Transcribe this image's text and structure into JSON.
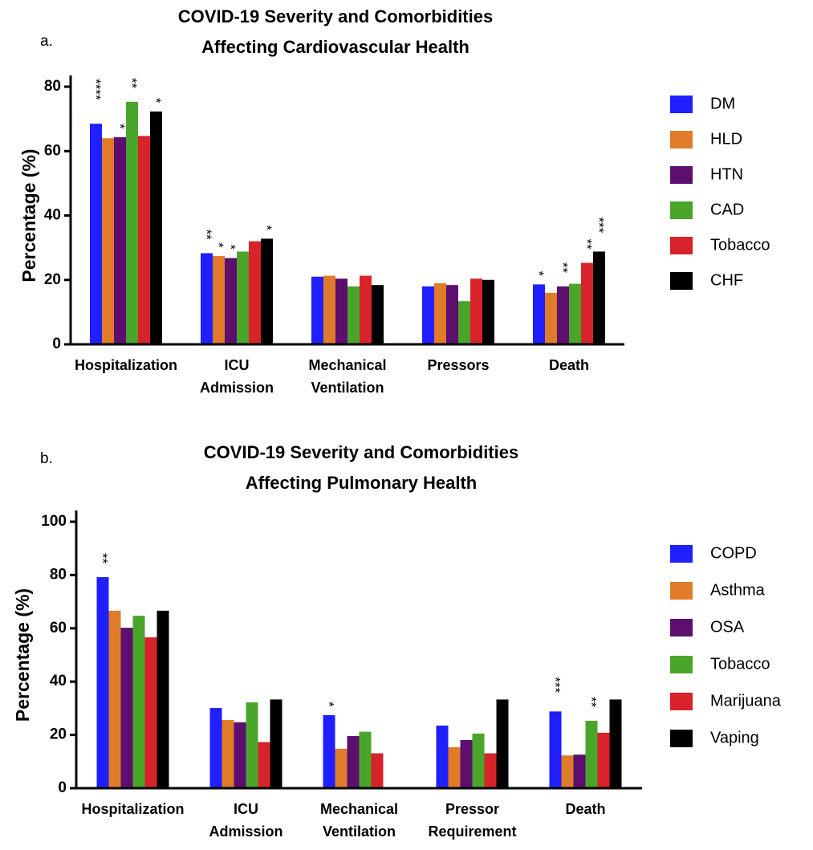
{
  "chart_data": [
    {
      "type": "bar",
      "panel_label": "a.",
      "title": [
        "COVID-19 Severity and Comorbidities",
        "Affecting Cardiovascular Health"
      ],
      "y_label": "Percentage (%)",
      "categories": [
        [
          "Hospitalization"
        ],
        [
          "ICU",
          "Admission"
        ],
        [
          "Mechanical",
          "Ventilation"
        ],
        [
          "Pressors"
        ],
        [
          "Death"
        ]
      ],
      "ylim": [
        0,
        80
      ],
      "yticks": [
        0,
        20,
        40,
        60,
        80
      ],
      "series": [
        {
          "name": "DM",
          "color": "#1f1fff",
          "values": [
            68.5,
            28.3,
            21,
            18,
            18.6
          ],
          "significance": [
            "****",
            "**",
            null,
            null,
            "*"
          ]
        },
        {
          "name": "HLD",
          "color": "#e07b2a",
          "values": [
            64,
            27.4,
            21.3,
            19,
            16
          ],
          "significance": [
            null,
            "*",
            null,
            null,
            null
          ]
        },
        {
          "name": "HTN",
          "color": "#5c0f6e",
          "values": [
            64.3,
            26.8,
            20.4,
            18.4,
            18
          ],
          "significance": [
            "*",
            "*",
            null,
            null,
            "**"
          ]
        },
        {
          "name": "CAD",
          "color": "#4aa52b",
          "values": [
            75.3,
            28.8,
            18,
            13.4,
            18.8
          ],
          "significance": [
            "**",
            null,
            null,
            null,
            null
          ]
        },
        {
          "name": "Tobacco",
          "color": "#d8232a",
          "values": [
            64.7,
            32,
            21.3,
            20.4,
            25.3
          ],
          "significance": [
            null,
            null,
            null,
            null,
            "**"
          ]
        },
        {
          "name": "CHF",
          "color": "#000000",
          "values": [
            72.3,
            32.8,
            18.4,
            20,
            28.8
          ],
          "significance": [
            "*",
            "*",
            null,
            null,
            "***"
          ]
        }
      ]
    },
    {
      "type": "bar",
      "panel_label": "b.",
      "title": [
        "COVID-19 Severity and Comorbidities",
        "Affecting Pulmonary Health"
      ],
      "y_label": "Percentage (%)",
      "categories": [
        [
          "Hospitalization"
        ],
        [
          "ICU",
          "Admission"
        ],
        [
          "Mechanical",
          "Ventilation"
        ],
        [
          "Pressor",
          "Requirement"
        ],
        [
          "Death"
        ]
      ],
      "ylim": [
        0,
        100
      ],
      "yticks": [
        0,
        20,
        40,
        60,
        80,
        100
      ],
      "series": [
        {
          "name": "COPD",
          "color": "#1f1fff",
          "values": [
            79.2,
            30.1,
            27.4,
            23.5,
            28.8
          ],
          "significance": [
            "**",
            null,
            "*",
            null,
            "***"
          ]
        },
        {
          "name": "Asthma",
          "color": "#e07b2a",
          "values": [
            66.6,
            25.6,
            14.8,
            15.4,
            12.3
          ],
          "significance": [
            null,
            null,
            null,
            null,
            null
          ]
        },
        {
          "name": "OSA",
          "color": "#5c0f6e",
          "values": [
            60.2,
            24.7,
            19.6,
            18.1,
            12.6
          ],
          "significance": [
            null,
            null,
            null,
            null,
            null
          ]
        },
        {
          "name": "Tobacco",
          "color": "#4aa52b",
          "values": [
            64.7,
            32.2,
            21.2,
            20.5,
            25.3
          ],
          "significance": [
            null,
            null,
            null,
            null,
            "**"
          ]
        },
        {
          "name": "Marijuana",
          "color": "#d8232a",
          "values": [
            56.6,
            17.3,
            13.1,
            13.1,
            20.8
          ],
          "significance": [
            null,
            null,
            null,
            null,
            null
          ]
        },
        {
          "name": "Vaping",
          "color": "#000000",
          "values": [
            66.6,
            33.3,
            null,
            33.3,
            33.3
          ],
          "significance": [
            null,
            null,
            null,
            null,
            null
          ]
        }
      ]
    }
  ]
}
